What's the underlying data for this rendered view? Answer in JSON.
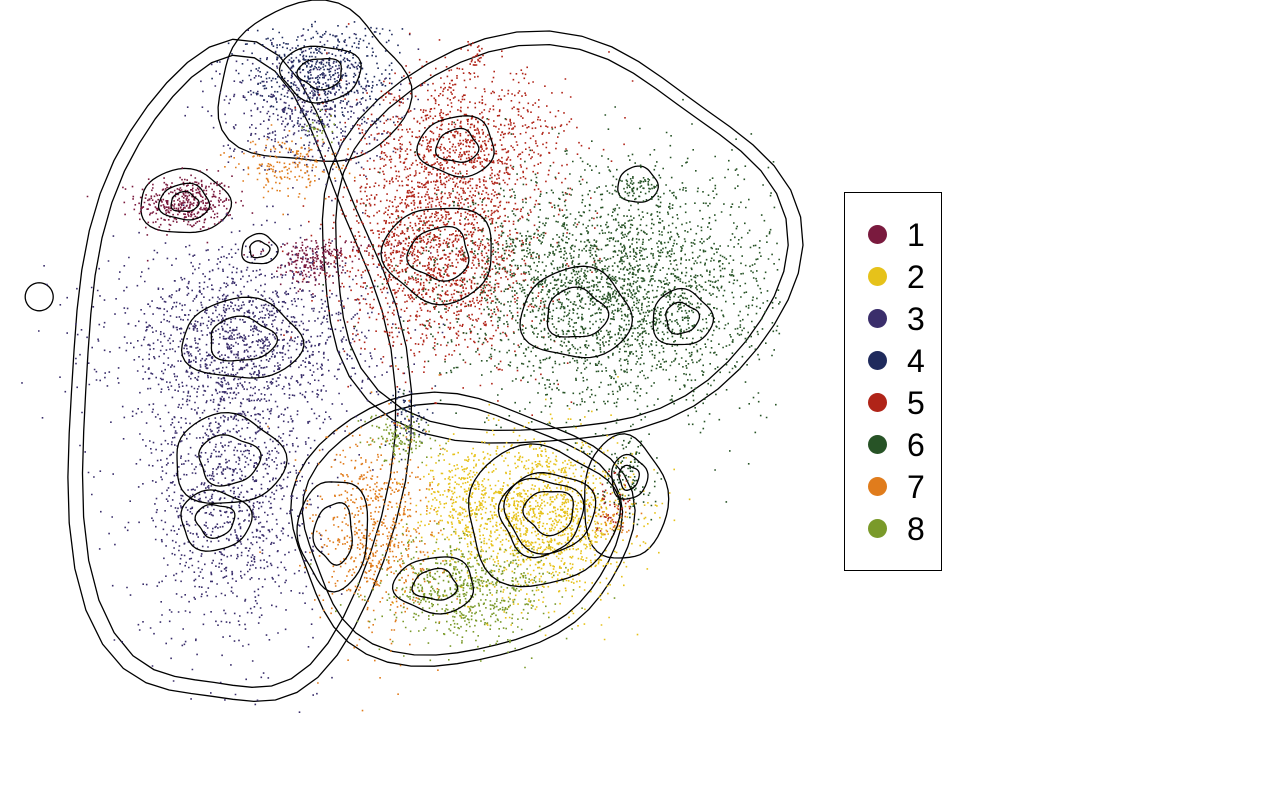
{
  "chart_data": {
    "type": "scatter",
    "title": "",
    "xlabel": "",
    "ylabel": "",
    "grid": false,
    "axes": false,
    "density_contours": true,
    "legend_position": "right",
    "legend": [
      {
        "label": "1",
        "color": "#7a1a3e"
      },
      {
        "label": "2",
        "color": "#e6c21a"
      },
      {
        "label": "3",
        "color": "#3a2e6b"
      },
      {
        "label": "4",
        "color": "#1f2a5c"
      },
      {
        "label": "5",
        "color": "#b02418"
      },
      {
        "label": "6",
        "color": "#275326"
      },
      {
        "label": "7",
        "color": "#e07c1c"
      },
      {
        "label": "8",
        "color": "#7a9a2a"
      }
    ],
    "series": [
      {
        "name": "1",
        "color": "#7a1a3e",
        "clusters": [
          [
            -4.9,
            4.6,
            0.55,
            0.32,
            900
          ],
          [
            -2.0,
            3.2,
            0.35,
            0.26,
            420
          ],
          [
            -1.3,
            3.5,
            0.9,
            0.12,
            140
          ]
        ]
      },
      {
        "name": "2",
        "color": "#e6c21a",
        "clusters": [
          [
            3.2,
            -2.7,
            1.05,
            0.95,
            3200
          ],
          [
            1.4,
            -2.2,
            0.45,
            0.6,
            500
          ]
        ]
      },
      {
        "name": "3",
        "color": "#3a2e6b",
        "clusters": [
          [
            -3.6,
            1.4,
            1.5,
            1.05,
            3200
          ],
          [
            -3.9,
            -2.2,
            1.0,
            1.7,
            2600
          ],
          [
            -2.2,
            6.8,
            0.95,
            0.75,
            1100
          ]
        ]
      },
      {
        "name": "4",
        "color": "#1f2a5c",
        "clusters": [
          [
            -1.8,
            7.6,
            0.85,
            0.6,
            1200
          ],
          [
            0.2,
            -0.4,
            0.25,
            0.35,
            160
          ]
        ]
      },
      {
        "name": "5",
        "color": "#b02418",
        "clusters": [
          [
            0.9,
            3.4,
            1.1,
            1.2,
            3600
          ],
          [
            1.4,
            5.9,
            1.2,
            0.9,
            2200
          ],
          [
            1.7,
            8.0,
            0.1,
            0.2,
            60
          ],
          [
            4.8,
            -2.3,
            0.25,
            0.35,
            120
          ]
        ]
      },
      {
        "name": "6",
        "color": "#275326",
        "clusters": [
          [
            4.9,
            2.6,
            1.9,
            1.35,
            6500
          ],
          [
            5.4,
            5.0,
            0.2,
            0.15,
            120
          ],
          [
            5.2,
            -1.8,
            0.3,
            0.5,
            260
          ]
        ]
      },
      {
        "name": "7",
        "color": "#e07c1c",
        "clusters": [
          [
            -0.6,
            -3.1,
            0.7,
            1.2,
            1500
          ],
          [
            -2.5,
            5.4,
            0.6,
            0.35,
            380
          ],
          [
            4.9,
            -2.8,
            0.25,
            0.25,
            90
          ]
        ]
      },
      {
        "name": "8",
        "color": "#7a9a2a",
        "clusters": [
          [
            1.5,
            -4.4,
            1.0,
            0.6,
            1500
          ],
          [
            0.0,
            -0.9,
            0.4,
            0.25,
            280
          ],
          [
            -1.8,
            6.3,
            0.2,
            0.2,
            50
          ]
        ]
      }
    ]
  }
}
